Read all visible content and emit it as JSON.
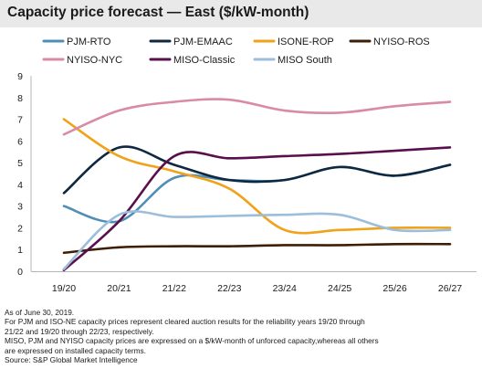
{
  "title": "Capacity price forecast — East ($/kW-month)",
  "notes": [
    "As of June 30, 2019.",
    "For PJM and ISO-NE capacity prices represent cleared auction results for the reliability years 19/20 through",
    "21/22 and 19/20 through 22/23, respectively.",
    "MISO, PJM and NYISO capacity prices are expressed on a $/kW-month of unforced capacity,whereas all others",
    "are expressed on installed capacity terms.",
    "Source: S&P Global Market Intelligence"
  ],
  "chart_data": {
    "type": "line",
    "smooth": true,
    "title": "Capacity price forecast — East ($/kW-month)",
    "xlabel": "",
    "ylabel": "",
    "categories": [
      "19/20",
      "20/21",
      "21/22",
      "22/23",
      "23/24",
      "24/25",
      "25/26",
      "26/27"
    ],
    "ylim": [
      0,
      9
    ],
    "yticks": [
      0,
      1,
      2,
      3,
      4,
      5,
      6,
      7,
      8,
      9
    ],
    "grid": false,
    "legend_position": "top",
    "series": [
      {
        "name": "PJM-RTO",
        "color": "#4f8fb5",
        "values": [
          3.0,
          2.3,
          4.3,
          4.2,
          4.2,
          4.8,
          4.4,
          4.9
        ]
      },
      {
        "name": "PJM-EMAAC",
        "color": "#0e2841",
        "values": [
          3.6,
          5.7,
          4.9,
          4.2,
          4.2,
          4.8,
          4.4,
          4.9
        ]
      },
      {
        "name": "ISONE-ROP",
        "color": "#f0a21a",
        "values": [
          7.0,
          5.3,
          4.6,
          3.8,
          1.9,
          1.9,
          2.0,
          2.0
        ]
      },
      {
        "name": "NYISO-ROS",
        "color": "#3d1e06",
        "values": [
          0.85,
          1.1,
          1.15,
          1.15,
          1.2,
          1.2,
          1.25,
          1.25
        ]
      },
      {
        "name": "NYISO-NYC",
        "color": "#d98aa6",
        "values": [
          6.3,
          7.4,
          7.8,
          7.9,
          7.4,
          7.3,
          7.6,
          7.8
        ]
      },
      {
        "name": "MISO-Classic",
        "color": "#5a0f4d",
        "values": [
          0.05,
          2.3,
          5.3,
          5.2,
          5.3,
          5.4,
          5.55,
          5.7
        ]
      },
      {
        "name": "MISO South",
        "color": "#9cbedb",
        "values": [
          0.1,
          2.6,
          2.5,
          2.55,
          2.6,
          2.6,
          1.9,
          1.9
        ]
      }
    ]
  }
}
